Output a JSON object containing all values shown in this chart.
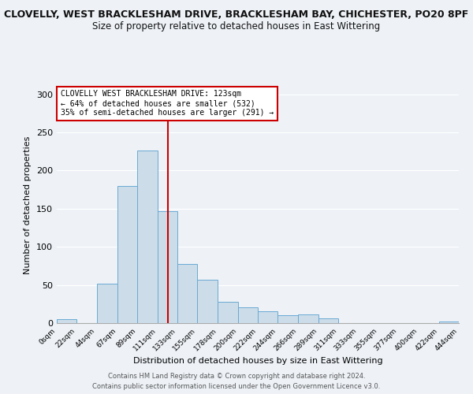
{
  "title_line1": "CLOVELLY, WEST BRACKLESHAM DRIVE, BRACKLESHAM BAY, CHICHESTER, PO20 8PF",
  "title_line2": "Size of property relative to detached houses in East Wittering",
  "xlabel": "Distribution of detached houses by size in East Wittering",
  "ylabel": "Number of detached properties",
  "footnote1": "Contains HM Land Registry data © Crown copyright and database right 2024.",
  "footnote2": "Contains public sector information licensed under the Open Government Licence v3.0.",
  "bar_edges": [
    0,
    22,
    44,
    67,
    89,
    111,
    133,
    155,
    178,
    200,
    222,
    244,
    266,
    289,
    311,
    333,
    355,
    377,
    400,
    422,
    444
  ],
  "bar_heights": [
    5,
    0,
    52,
    180,
    226,
    147,
    77,
    57,
    28,
    21,
    16,
    10,
    11,
    6,
    0,
    0,
    0,
    0,
    0,
    2
  ],
  "tick_labels": [
    "0sqm",
    "22sqm",
    "44sqm",
    "67sqm",
    "89sqm",
    "111sqm",
    "133sqm",
    "155sqm",
    "178sqm",
    "200sqm",
    "222sqm",
    "244sqm",
    "266sqm",
    "289sqm",
    "311sqm",
    "333sqm",
    "355sqm",
    "377sqm",
    "400sqm",
    "422sqm",
    "444sqm"
  ],
  "bar_facecolor": "#ccdce8",
  "bar_edgecolor": "#6aaad4",
  "vline_x": 123,
  "vline_color": "#cc0000",
  "annotation_line1": "CLOVELLY WEST BRACKLESHAM DRIVE: 123sqm",
  "annotation_line2": "← 64% of detached houses are smaller (532)",
  "annotation_line3": "35% of semi-detached houses are larger (291) →",
  "annotation_box_edgecolor": "#cc0000",
  "ylim": [
    0,
    310
  ],
  "yticks": [
    0,
    50,
    100,
    150,
    200,
    250,
    300
  ],
  "background_color": "#eef2f7",
  "plot_bg_color": "#eef2f7",
  "grid_color": "#ffffff",
  "title1_fontsize": 9,
  "title2_fontsize": 8.5
}
